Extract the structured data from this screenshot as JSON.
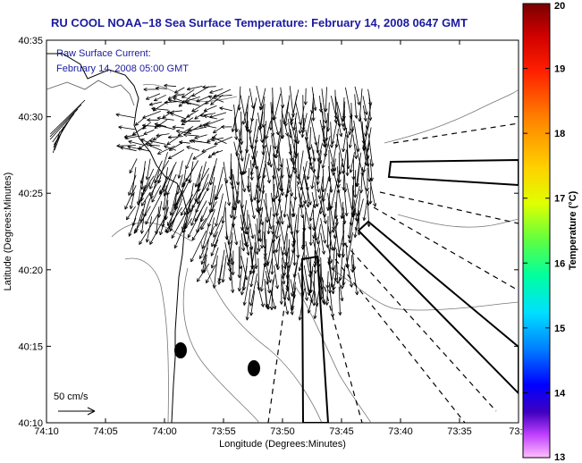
{
  "title": "RU COOL  NOAA−18  Sea Surface Temperature:  February 14, 2008 0647 GMT",
  "overlay": {
    "line1": "Raw Surface Current:",
    "line2": "February 14, 2008 05:00 GMT"
  },
  "scale_label": "50 cm/s",
  "x_axis": {
    "label": "Longitude (Degrees:Minutes)",
    "ticks": [
      "74:10",
      "74:05",
      "74:00",
      "73:55",
      "73:50",
      "73:45",
      "73:40",
      "73:35",
      "73:3"
    ]
  },
  "y_axis": {
    "label": "Latitude (Degrees:Minutes)",
    "ticks": [
      "40:35",
      "40:30",
      "40:25",
      "40:20",
      "40:15",
      "40:10"
    ]
  },
  "colorbar": {
    "label": "Temperature (°C)",
    "ticks": [
      "20",
      "19",
      "18",
      "17",
      "16",
      "15",
      "14",
      "13"
    ],
    "colors": [
      "#8b0000",
      "#ff0000",
      "#ff8c00",
      "#ffff00",
      "#00ff80",
      "#00ffff",
      "#0000ff",
      "#ff66ff"
    ]
  }
}
